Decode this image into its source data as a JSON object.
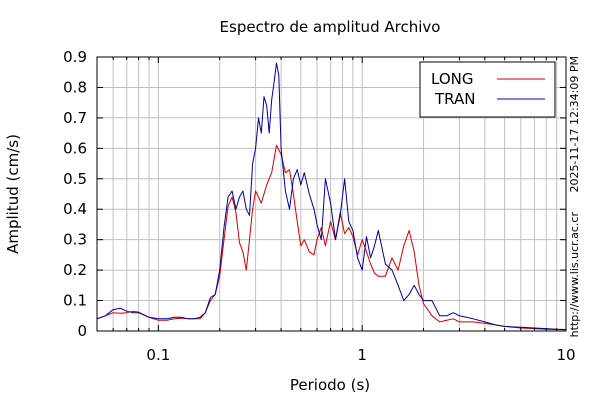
{
  "chart_data": {
    "type": "line",
    "title": "Espectro de amplitud Archivo",
    "xlabel": "Periodo (s)",
    "ylabel": "Amplitud (cm/s)",
    "x_scale": "log",
    "xlim": [
      0.05,
      10
    ],
    "ylim": [
      0,
      0.9
    ],
    "grid": true,
    "legend_position": "top-right",
    "x_ticks": [
      {
        "value": 0.1,
        "label": "0.1"
      },
      {
        "value": 1,
        "label": "1"
      },
      {
        "value": 10,
        "label": "10"
      }
    ],
    "y_ticks": [
      {
        "value": 0,
        "label": "0"
      },
      {
        "value": 0.1,
        "label": "0.1"
      },
      {
        "value": 0.2,
        "label": "0.2"
      },
      {
        "value": 0.3,
        "label": "0.3"
      },
      {
        "value": 0.4,
        "label": "0.4"
      },
      {
        "value": 0.5,
        "label": "0.5"
      },
      {
        "value": 0.6,
        "label": "0.6"
      },
      {
        "value": 0.7,
        "label": "0.7"
      },
      {
        "value": 0.8,
        "label": "0.8"
      },
      {
        "value": 0.9,
        "label": "0.9"
      }
    ],
    "series": [
      {
        "name": "LONG",
        "color": "#cc0000",
        "x": [
          0.05,
          0.055,
          0.06,
          0.065,
          0.07,
          0.075,
          0.08,
          0.09,
          0.1,
          0.11,
          0.12,
          0.13,
          0.14,
          0.15,
          0.16,
          0.17,
          0.18,
          0.19,
          0.2,
          0.21,
          0.22,
          0.23,
          0.24,
          0.25,
          0.26,
          0.27,
          0.28,
          0.29,
          0.3,
          0.32,
          0.34,
          0.36,
          0.38,
          0.4,
          0.42,
          0.44,
          0.46,
          0.48,
          0.5,
          0.52,
          0.55,
          0.58,
          0.6,
          0.63,
          0.66,
          0.7,
          0.74,
          0.78,
          0.82,
          0.86,
          0.9,
          0.95,
          1.0,
          1.05,
          1.1,
          1.15,
          1.2,
          1.3,
          1.4,
          1.5,
          1.6,
          1.7,
          1.8,
          1.9,
          2.0,
          2.2,
          2.4,
          2.6,
          2.8,
          3.0,
          3.5,
          4.0,
          4.5,
          5.0,
          6.0,
          7.0,
          8.0,
          9.0,
          10.0
        ],
        "y": [
          0.04,
          0.05,
          0.06,
          0.058,
          0.06,
          0.065,
          0.062,
          0.045,
          0.035,
          0.035,
          0.04,
          0.042,
          0.04,
          0.04,
          0.04,
          0.06,
          0.1,
          0.12,
          0.18,
          0.3,
          0.41,
          0.44,
          0.39,
          0.29,
          0.26,
          0.2,
          0.3,
          0.4,
          0.46,
          0.42,
          0.48,
          0.52,
          0.61,
          0.58,
          0.52,
          0.53,
          0.45,
          0.36,
          0.28,
          0.3,
          0.26,
          0.25,
          0.3,
          0.34,
          0.28,
          0.36,
          0.3,
          0.39,
          0.32,
          0.34,
          0.31,
          0.25,
          0.3,
          0.26,
          0.22,
          0.19,
          0.18,
          0.18,
          0.24,
          0.2,
          0.28,
          0.33,
          0.26,
          0.15,
          0.09,
          0.05,
          0.03,
          0.035,
          0.04,
          0.03,
          0.03,
          0.025,
          0.02,
          0.015,
          0.01,
          0.008,
          0.006,
          0.005,
          0.004
        ]
      },
      {
        "name": "TRAN",
        "color": "#000099",
        "x": [
          0.05,
          0.055,
          0.06,
          0.065,
          0.07,
          0.075,
          0.08,
          0.09,
          0.1,
          0.11,
          0.12,
          0.13,
          0.14,
          0.15,
          0.16,
          0.17,
          0.18,
          0.19,
          0.2,
          0.21,
          0.22,
          0.23,
          0.24,
          0.25,
          0.26,
          0.27,
          0.28,
          0.29,
          0.3,
          0.31,
          0.32,
          0.33,
          0.34,
          0.35,
          0.36,
          0.37,
          0.38,
          0.39,
          0.4,
          0.42,
          0.44,
          0.46,
          0.48,
          0.5,
          0.52,
          0.55,
          0.58,
          0.6,
          0.63,
          0.66,
          0.7,
          0.74,
          0.78,
          0.82,
          0.86,
          0.9,
          0.95,
          1.0,
          1.05,
          1.1,
          1.15,
          1.2,
          1.3,
          1.4,
          1.5,
          1.6,
          1.7,
          1.8,
          1.9,
          2.0,
          2.2,
          2.4,
          2.6,
          2.8,
          3.0,
          3.5,
          4.0,
          4.5,
          5.0,
          6.0,
          7.0,
          8.0,
          9.0,
          10.0
        ],
        "y": [
          0.04,
          0.05,
          0.07,
          0.075,
          0.065,
          0.06,
          0.06,
          0.045,
          0.04,
          0.04,
          0.045,
          0.045,
          0.04,
          0.04,
          0.045,
          0.06,
          0.11,
          0.12,
          0.2,
          0.34,
          0.44,
          0.46,
          0.4,
          0.44,
          0.46,
          0.4,
          0.38,
          0.55,
          0.6,
          0.7,
          0.65,
          0.77,
          0.74,
          0.65,
          0.76,
          0.82,
          0.88,
          0.84,
          0.6,
          0.46,
          0.4,
          0.5,
          0.53,
          0.48,
          0.52,
          0.45,
          0.4,
          0.35,
          0.3,
          0.5,
          0.42,
          0.3,
          0.38,
          0.5,
          0.36,
          0.33,
          0.24,
          0.2,
          0.31,
          0.24,
          0.28,
          0.33,
          0.22,
          0.2,
          0.15,
          0.1,
          0.12,
          0.15,
          0.12,
          0.1,
          0.1,
          0.05,
          0.05,
          0.06,
          0.05,
          0.04,
          0.03,
          0.02,
          0.015,
          0.012,
          0.01,
          0.008,
          0.006,
          0.005
        ]
      }
    ]
  },
  "side_text": {
    "timestamp": "2025-11-17 12:34:09 PM",
    "url": "http://www.lis.ucr.ac.cr"
  }
}
